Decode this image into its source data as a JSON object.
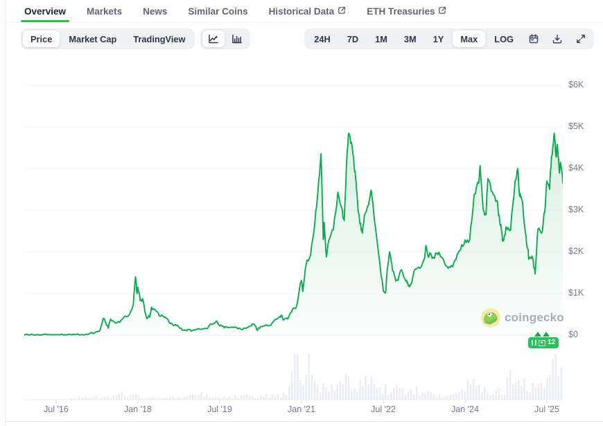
{
  "tabs": {
    "items": [
      {
        "label": "Overview",
        "active": true,
        "external": false
      },
      {
        "label": "Markets",
        "active": false,
        "external": false
      },
      {
        "label": "News",
        "active": false,
        "external": false
      },
      {
        "label": "Similar Coins",
        "active": false,
        "external": false
      },
      {
        "label": "Historical Data",
        "active": false,
        "external": true
      },
      {
        "label": "ETH Treasuries",
        "active": false,
        "external": true
      }
    ]
  },
  "toolbar": {
    "metric_tabs": [
      {
        "label": "Price",
        "active": true
      },
      {
        "label": "Market Cap",
        "active": false
      },
      {
        "label": "TradingView",
        "active": false
      }
    ],
    "chart_types": [
      {
        "name": "line-chart",
        "active": true
      },
      {
        "name": "bar-chart",
        "active": false
      }
    ],
    "ranges": [
      {
        "label": "24H",
        "active": false
      },
      {
        "label": "7D",
        "active": false
      },
      {
        "label": "1M",
        "active": false
      },
      {
        "label": "3M",
        "active": false
      },
      {
        "label": "1Y",
        "active": false
      },
      {
        "label": "Max",
        "active": true
      },
      {
        "label": "LOG",
        "active": false
      }
    ],
    "action_icons": [
      "calendar-icon",
      "download-icon",
      "expand-icon"
    ]
  },
  "watermark": {
    "text": "coingecko"
  },
  "badge": {
    "count": "12"
  },
  "chart_data": {
    "type": "line",
    "title": "ETH price, Max range (USD)",
    "legend": "none",
    "grid": "horizontal",
    "y_axis": {
      "side": "right",
      "min": 0,
      "max": 6000,
      "tick_step": 1000,
      "tick_labels": [
        "$6K",
        "$5K",
        "$4K",
        "$3K",
        "$2K",
        "$1K",
        "$0"
      ]
    },
    "x_axis": {
      "unit": "months since Sep 2015",
      "ticks": [
        {
          "t": 10,
          "label": "Jul '16"
        },
        {
          "t": 28,
          "label": "Jan '18"
        },
        {
          "t": 46,
          "label": "Jul '19"
        },
        {
          "t": 64,
          "label": "Jan '21"
        },
        {
          "t": 82,
          "label": "Jul '22"
        },
        {
          "t": 100,
          "label": "Jan '24"
        },
        {
          "t": 118,
          "label": "Jul '25"
        }
      ]
    },
    "colors": {
      "line": "#0da94f",
      "area_top": "rgba(16,167,79,0.17)",
      "area_bottom": "rgba(16,167,79,0.01)",
      "volume_bar": "#e9edf3",
      "grid": "#f1f4f7",
      "axis": "#e8ecf1",
      "tick": "#d7dde5"
    },
    "points": [
      [
        3,
        0.88
      ],
      [
        4,
        2.3
      ],
      [
        5,
        6.2
      ],
      [
        6,
        11.5
      ],
      [
        7,
        8.8
      ],
      [
        8,
        14
      ],
      [
        9,
        12.5
      ],
      [
        10,
        11.5
      ],
      [
        11,
        11
      ],
      [
        12,
        13
      ],
      [
        13,
        11
      ],
      [
        14,
        8.6
      ],
      [
        15,
        8
      ],
      [
        16,
        10.5
      ],
      [
        17,
        16
      ],
      [
        18,
        50
      ],
      [
        19,
        80
      ],
      [
        19.5,
        96
      ],
      [
        20,
        230
      ],
      [
        20.4,
        400
      ],
      [
        21,
        280
      ],
      [
        21.5,
        165
      ],
      [
        22,
        385
      ],
      [
        23,
        300
      ],
      [
        24,
        305
      ],
      [
        25,
        445
      ],
      [
        26,
        470
      ],
      [
        27,
        750
      ],
      [
        27.5,
        1400
      ],
      [
        27.8,
        1000
      ],
      [
        28,
        1150
      ],
      [
        28.5,
        830
      ],
      [
        29,
        880
      ],
      [
        29.4,
        680
      ],
      [
        30,
        395
      ],
      [
        30.6,
        430
      ],
      [
        31,
        670
      ],
      [
        32,
        580
      ],
      [
        33,
        455
      ],
      [
        34,
        435
      ],
      [
        35,
        283
      ],
      [
        36,
        233
      ],
      [
        37,
        197
      ],
      [
        38,
        118
      ],
      [
        39,
        133
      ],
      [
        40,
        107
      ],
      [
        41,
        137
      ],
      [
        42,
        141
      ],
      [
        43,
        162
      ],
      [
        44,
        268
      ],
      [
        45.3,
        340
      ],
      [
        46,
        218
      ],
      [
        47,
        172
      ],
      [
        48,
        180
      ],
      [
        49,
        183
      ],
      [
        50,
        152
      ],
      [
        51,
        129
      ],
      [
        52,
        180
      ],
      [
        53,
        223
      ],
      [
        53.6,
        265
      ],
      [
        54.3,
        113
      ],
      [
        55,
        206
      ],
      [
        56,
        231
      ],
      [
        57,
        226
      ],
      [
        58,
        346
      ],
      [
        59,
        428
      ],
      [
        59.5,
        470
      ],
      [
        60,
        360
      ],
      [
        61,
        386
      ],
      [
        62,
        615
      ],
      [
        63,
        737
      ],
      [
        64,
        1314
      ],
      [
        64.3,
        1050
      ],
      [
        65,
        1680
      ],
      [
        66,
        1918
      ],
      [
        67,
        2772
      ],
      [
        67.6,
        3430
      ],
      [
        68.3,
        4356
      ],
      [
        68.8,
        2300
      ],
      [
        69,
        2706
      ],
      [
        69.5,
        1880
      ],
      [
        70,
        2274
      ],
      [
        71,
        2532
      ],
      [
        72,
        3433
      ],
      [
        73,
        3001
      ],
      [
        73.4,
        2750
      ],
      [
        74,
        4288
      ],
      [
        74.4,
        4850
      ],
      [
        75,
        4631
      ],
      [
        75.6,
        4050
      ],
      [
        76,
        3683
      ],
      [
        76.5,
        2950
      ],
      [
        77,
        2688
      ],
      [
        77.4,
        2450
      ],
      [
        78,
        2919
      ],
      [
        79,
        3283
      ],
      [
        79.4,
        3450
      ],
      [
        80,
        2815
      ],
      [
        81,
        1942
      ],
      [
        82,
        1067
      ],
      [
        82.6,
        1090
      ],
      [
        83,
        1680
      ],
      [
        83.5,
        1950
      ],
      [
        84,
        1554
      ],
      [
        85,
        1328
      ],
      [
        86,
        1572
      ],
      [
        87,
        1294
      ],
      [
        87.5,
        1180
      ],
      [
        88,
        1196
      ],
      [
        89,
        1585
      ],
      [
        90,
        1606
      ],
      [
        91,
        1820
      ],
      [
        91.5,
        2110
      ],
      [
        92,
        1870
      ],
      [
        93,
        1874
      ],
      [
        94,
        1933
      ],
      [
        95,
        1856
      ],
      [
        96,
        1652
      ],
      [
        97,
        1671
      ],
      [
        98,
        1815
      ],
      [
        99,
        2045
      ],
      [
        100,
        2281
      ],
      [
        101,
        2283
      ],
      [
        102,
        3380
      ],
      [
        103,
        3647
      ],
      [
        103.3,
        4070
      ],
      [
        104,
        3012
      ],
      [
        104.6,
        2890
      ],
      [
        105,
        3762
      ],
      [
        106,
        3438
      ],
      [
        107,
        3232
      ],
      [
        107.5,
        2880
      ],
      [
        108,
        2513
      ],
      [
        108.3,
        2270
      ],
      [
        109,
        2602
      ],
      [
        110,
        2518
      ],
      [
        111,
        3703
      ],
      [
        111.6,
        4000
      ],
      [
        112,
        3336
      ],
      [
        112.5,
        3240
      ],
      [
        113,
        2700
      ],
      [
        113.5,
        2240
      ],
      [
        114,
        1823
      ],
      [
        115,
        1794
      ],
      [
        115.4,
        1470
      ],
      [
        116,
        2530
      ],
      [
        117,
        2490
      ],
      [
        117.5,
        2950
      ],
      [
        118,
        3700
      ],
      [
        118.6,
        3500
      ],
      [
        119,
        4280
      ],
      [
        119.6,
        4850
      ],
      [
        120,
        4300
      ],
      [
        120.3,
        4580
      ],
      [
        120.7,
        3950
      ],
      [
        121,
        4150
      ],
      [
        121.5,
        3650
      ]
    ],
    "volume": {
      "type": "bar",
      "scale": "relative 0-100, evenly spaced over same time range",
      "values": [
        0.4,
        0.5,
        0.5,
        0.6,
        0.5,
        0.6,
        0.5,
        0.6,
        1,
        1.5,
        3,
        4,
        6,
        5,
        4,
        6,
        4,
        5,
        6,
        9,
        14,
        10,
        7,
        8,
        7,
        5,
        4,
        4,
        3,
        3,
        4,
        5,
        4,
        5,
        6,
        7,
        10,
        11,
        8,
        6,
        5,
        5,
        4,
        4,
        6,
        7,
        9,
        6,
        5,
        5,
        7,
        9,
        8,
        7,
        10,
        12,
        55,
        95,
        60,
        45,
        88,
        52,
        30,
        28,
        35,
        30,
        38,
        42,
        35,
        30,
        28,
        25,
        38,
        45,
        25,
        20,
        22,
        18,
        25,
        15,
        18,
        15,
        20,
        15,
        12,
        12,
        10,
        10,
        10,
        12,
        14,
        16,
        18,
        30,
        40,
        28,
        25,
        20,
        18,
        25,
        20,
        18,
        45,
        40,
        35,
        30,
        28,
        30,
        25,
        22,
        32,
        55,
        95,
        50
      ]
    }
  }
}
